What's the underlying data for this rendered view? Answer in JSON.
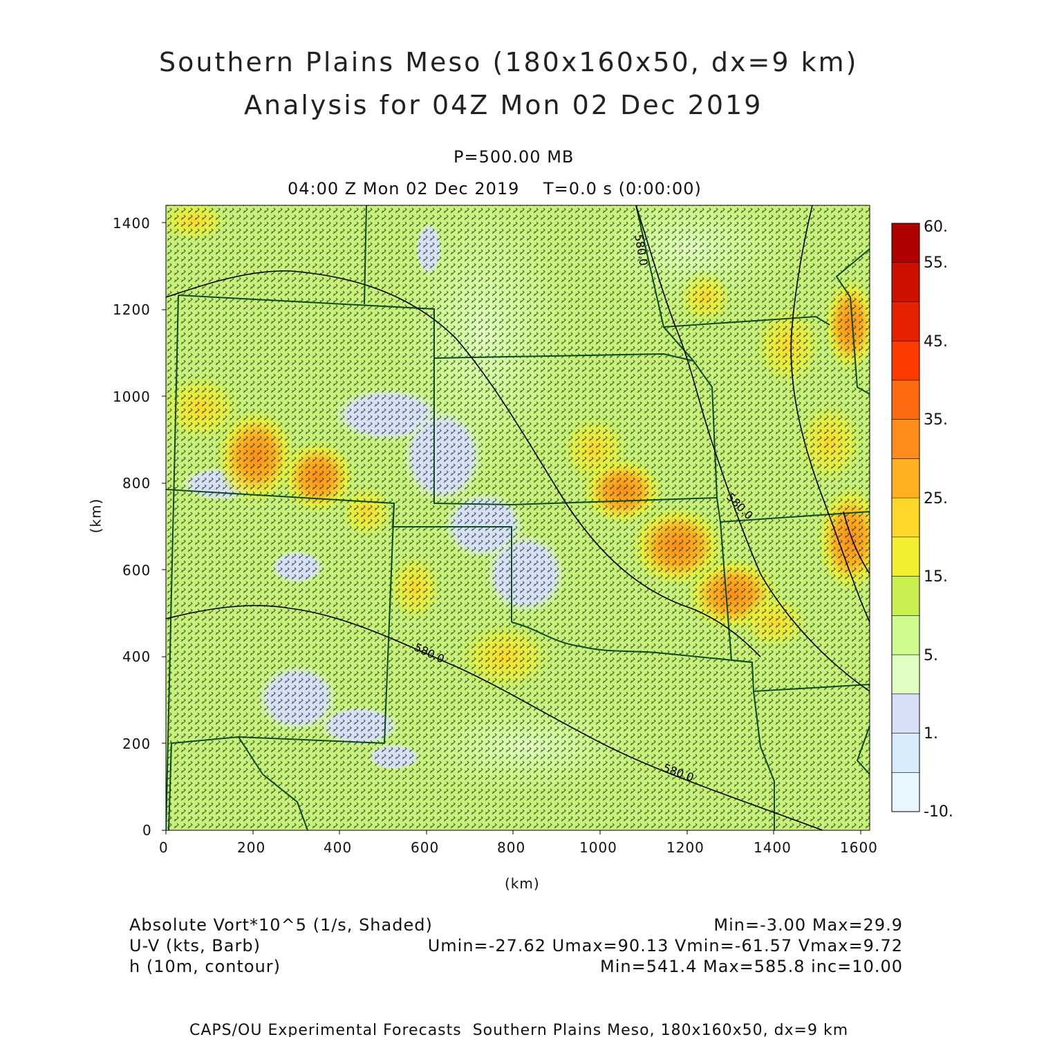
{
  "header": {
    "title_line1": "Southern Plains Meso (180x160x50, dx=9 km)",
    "title_line2": "Analysis for 04Z Mon 02 Dec 2019",
    "level": "P=500.00 MB",
    "time": "04:00 Z Mon 02 Dec 2019    T=0.0 s (0:00:00)"
  },
  "map": {
    "x_axis": {
      "label": "(km)",
      "ticks": [
        "0",
        "200",
        "400",
        "600",
        "800",
        "1000",
        "1200",
        "1400",
        "1600"
      ],
      "range": [
        0,
        1620
      ]
    },
    "y_axis": {
      "label": "(km)",
      "ticks": [
        "0",
        "200",
        "400",
        "600",
        "800",
        "1000",
        "1200",
        "1400"
      ],
      "range": [
        0,
        1440
      ]
    },
    "contour_labels": [
      "580.0",
      "580.0",
      "580.0",
      "580.0"
    ],
    "fields": {
      "shaded": "Absolute Vort*10^5 (1/s, Shaded)",
      "barbs": "U-V (kts, Barb)",
      "contour": "h (10m, contour)"
    }
  },
  "colorbar": {
    "labels": [
      "60.",
      "55.",
      "45.",
      "35.",
      "25.",
      "15.",
      "5.",
      "1.",
      "-10."
    ],
    "colors": [
      "#b00000",
      "#cc1100",
      "#e62200",
      "#ff3a00",
      "#ff6a10",
      "#ff8c1a",
      "#ffb020",
      "#ffd72a",
      "#f0f030",
      "#c8f050",
      "#d0fa90",
      "#e0ffc0",
      "#d8e0f8",
      "#d8ecfc",
      "#e8f6ff"
    ]
  },
  "legend": {
    "row1_left": "Absolute Vort*10^5 (1/s, Shaded)",
    "row1_right": "Min=-3.00 Max=29.9",
    "row2_left": "U-V (kts, Barb)",
    "row2_right": "Umin=-27.62 Umax=90.13 Vmin=-61.57 Vmax=9.72",
    "row3_left": "h (10m, contour)",
    "row3_right": "Min=541.4 Max=585.8 inc=10.00"
  },
  "footer": "CAPS/OU Experimental Forecasts  Southern Plains Meso, 180x160x50, dx=9 km"
}
